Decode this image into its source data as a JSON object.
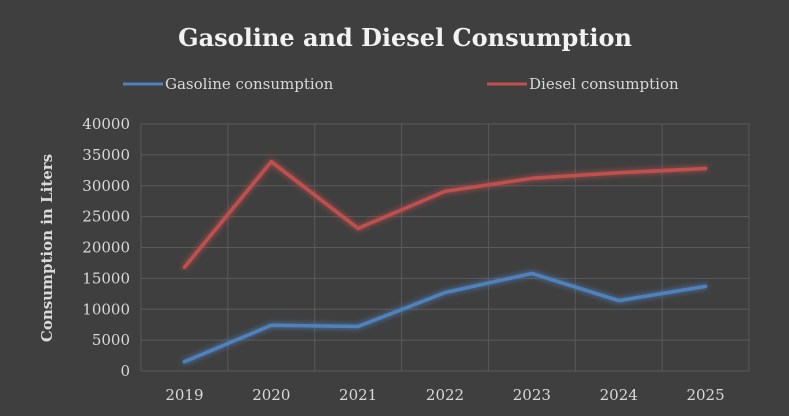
{
  "chart_data": {
    "type": "line",
    "title": "Gasoline and Diesel Consumption",
    "xlabel": "",
    "ylabel": "Consumption in Liters",
    "x": [
      "2019",
      "2020",
      "2021",
      "2022",
      "2023",
      "2024",
      "2025"
    ],
    "ylim": [
      0,
      40000
    ],
    "yticks": [
      0,
      5000,
      10000,
      15000,
      20000,
      25000,
      30000,
      35000,
      40000
    ],
    "grid": true,
    "legend_position": "top",
    "series": [
      {
        "name": "Gasoline consumption",
        "color": "#4f81bd",
        "values": [
          1500,
          7400,
          7200,
          12700,
          15800,
          11400,
          13700
        ]
      },
      {
        "name": "Diesel consumption",
        "color": "#c0504d",
        "values": [
          16800,
          33900,
          23100,
          29100,
          31200,
          32100,
          32800
        ]
      }
    ]
  }
}
